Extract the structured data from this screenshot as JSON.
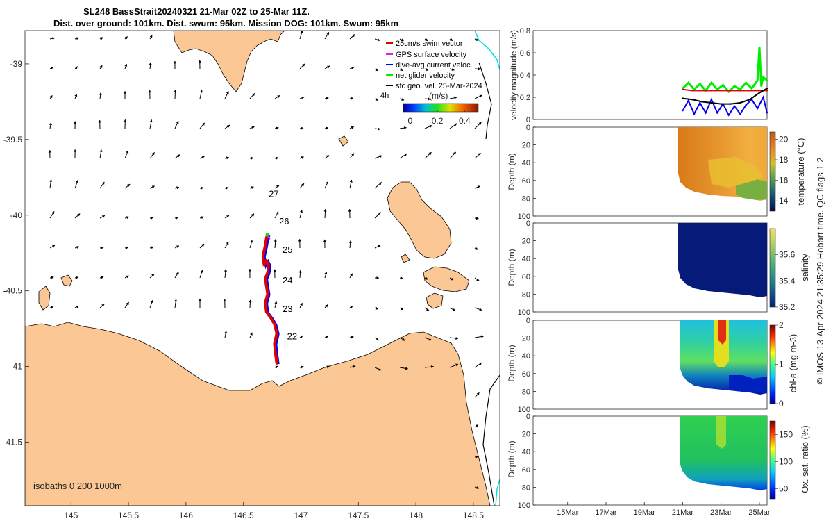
{
  "title": {
    "line1": "SL248 BassStrait20240321 21-Mar 02Z to 25-Mar 11Z.",
    "line2": "Dist. over ground: 101km. Dist. swum: 95km. Mission DOG: 101km. Swum: 95km"
  },
  "colors": {
    "land": "#fbc794",
    "sea": "#ffffff",
    "track_red": "#e00000",
    "track_blue": "#0000ee",
    "net_green": "#00ee00",
    "gps_magenta": "#e020e0",
    "cyan_line": "#00e0e0"
  },
  "chart_data": [
    {
      "type": "map",
      "xlim": [
        144.6,
        148.73
      ],
      "ylim": [
        -41.92,
        -38.78
      ],
      "xticks": [
        "145",
        "145.5",
        "146",
        "146.5",
        "147",
        "147.5",
        "148",
        "148.5"
      ],
      "xtick_values": [
        145,
        145.5,
        146,
        146.5,
        147,
        147.5,
        148,
        148.5
      ],
      "yticks": [
        "-39",
        "-39.5",
        "-40",
        "-40.5",
        "-41",
        "-41.5"
      ],
      "ytick_values": [
        -39,
        -39.5,
        -40,
        -40.5,
        -41,
        -41.5
      ],
      "legend": {
        "placement": "top-right",
        "entries": [
          {
            "label": "25cm/s swim vector",
            "color": "#e00000"
          },
          {
            "label": "GPS surface velocity",
            "color": "#e020e0"
          },
          {
            "label": "dive-avg current veloc.",
            "color": "#0000ee"
          },
          {
            "label": "net glider velocity",
            "color": "#00ee00"
          },
          {
            "label": "sfc geo. vel. 25-Mar-2024",
            "color": "#000000"
          }
        ],
        "arrow_scale_label": "4h"
      },
      "colorbar": {
        "label": "(m/s)",
        "ticks": [
          "0",
          "0.2",
          "0.4"
        ],
        "tick_values": [
          0,
          0.2,
          0.4
        ],
        "range": [
          -0.05,
          0.5
        ]
      },
      "isobaths_label": "isobaths  0   200  1000m",
      "track": {
        "lon": [
          146.79,
          146.78,
          146.77,
          146.79,
          146.77,
          146.74,
          146.7,
          146.69,
          146.71,
          146.7,
          146.69,
          146.71,
          146.72,
          146.7,
          146.68,
          146.67,
          146.69,
          146.7,
          146.71
        ],
        "lat": [
          -40.98,
          -40.92,
          -40.85,
          -40.78,
          -40.72,
          -40.68,
          -40.64,
          -40.58,
          -40.52,
          -40.47,
          -40.42,
          -40.38,
          -40.33,
          -40.3,
          -40.33,
          -40.27,
          -40.2,
          -40.15,
          -40.13
        ]
      },
      "day_labels": [
        {
          "text": "22",
          "lon": 146.88,
          "lat": -40.82
        },
        {
          "text": "23",
          "lon": 146.84,
          "lat": -40.64
        },
        {
          "text": "24",
          "lon": 146.84,
          "lat": -40.45
        },
        {
          "text": "25",
          "lon": 146.84,
          "lat": -40.25
        },
        {
          "text": "26",
          "lon": 146.81,
          "lat": -40.06
        },
        {
          "text": "27",
          "lon": 146.72,
          "lat": -39.88
        }
      ]
    },
    {
      "type": "line",
      "ylabel": "velocity magnitude (m/s)",
      "ylim": [
        0,
        0.8
      ],
      "yticks": [
        "0",
        "0.2",
        "0.4",
        "0.6",
        "0.8"
      ],
      "ytick_values": [
        0,
        0.2,
        0.4,
        0.6,
        0.8
      ],
      "xlim_days": [
        13.2,
        25.4
      ],
      "series": [
        {
          "color": "#00ee00",
          "x": [
            21.0,
            21.3,
            21.6,
            21.9,
            22.2,
            22.5,
            22.8,
            23.1,
            23.4,
            23.7,
            24.0,
            24.3,
            24.6,
            24.9,
            25.0,
            25.1,
            25.2,
            25.4
          ],
          "y": [
            0.28,
            0.33,
            0.27,
            0.32,
            0.26,
            0.33,
            0.27,
            0.31,
            0.25,
            0.3,
            0.27,
            0.33,
            0.28,
            0.35,
            0.65,
            0.3,
            0.38,
            0.35
          ]
        },
        {
          "color": "#e00000",
          "x": [
            21.0,
            21.5,
            22.0,
            22.5,
            23.0,
            23.5,
            24.0,
            24.5,
            25.0,
            25.4
          ],
          "y": [
            0.27,
            0.26,
            0.26,
            0.26,
            0.26,
            0.26,
            0.26,
            0.26,
            0.26,
            0.26
          ]
        },
        {
          "color": "#0000ee",
          "x": [
            21.0,
            21.3,
            21.6,
            21.9,
            22.2,
            22.5,
            22.8,
            23.1,
            23.4,
            23.7,
            24.0,
            24.3,
            24.6,
            24.9,
            25.2,
            25.4
          ],
          "y": [
            0.08,
            0.17,
            0.05,
            0.15,
            0.06,
            0.18,
            0.06,
            0.14,
            0.04,
            0.12,
            0.05,
            0.13,
            0.18,
            0.1,
            0.2,
            0.06
          ]
        },
        {
          "color": "#000000",
          "x": [
            21.0,
            21.5,
            22.0,
            22.5,
            23.0,
            23.5,
            24.0,
            24.5,
            25.0,
            25.4
          ],
          "y": [
            0.19,
            0.18,
            0.16,
            0.15,
            0.14,
            0.14,
            0.15,
            0.18,
            0.24,
            0.28
          ]
        }
      ]
    },
    {
      "type": "heatmap",
      "variable": "temperature",
      "ylabel": "Depth (m)",
      "clabel": "temperature (°C)",
      "ylim": [
        100,
        0
      ],
      "yticks": [
        "0",
        "20",
        "40",
        "60",
        "80",
        "100"
      ],
      "ytick_values": [
        0,
        20,
        40,
        60,
        80,
        100
      ],
      "clim": [
        13,
        20.7
      ],
      "cticks": [
        "14",
        "16",
        "18",
        "20"
      ],
      "ctick_values": [
        14,
        16,
        18,
        20
      ],
      "colormap": "thermal"
    },
    {
      "type": "heatmap",
      "variable": "salinity",
      "ylabel": "Depth (m)",
      "clabel": "salinity",
      "ylim": [
        100,
        0
      ],
      "yticks": [
        "0",
        "20",
        "40",
        "60",
        "80",
        "100"
      ],
      "ytick_values": [
        0,
        20,
        40,
        60,
        80,
        100
      ],
      "clim": [
        35.2,
        35.8
      ],
      "cticks": [
        "35.2",
        "35.4",
        "35.6"
      ],
      "ctick_values": [
        35.2,
        35.4,
        35.6
      ],
      "colormap": "haline"
    },
    {
      "type": "heatmap",
      "variable": "chl-a",
      "ylabel": "Depth (m)",
      "clabel": "chl-a (mg m-3)",
      "ylim": [
        100,
        0
      ],
      "yticks": [
        "0",
        "20",
        "40",
        "60",
        "80",
        "100"
      ],
      "ytick_values": [
        0,
        20,
        40,
        60,
        80,
        100
      ],
      "clim": [
        0,
        2
      ],
      "cticks": [
        "0",
        "1",
        "2"
      ],
      "ctick_values": [
        0,
        1,
        2
      ],
      "colormap": "jet"
    },
    {
      "type": "heatmap",
      "variable": "oxygen",
      "ylabel": "Depth (m)",
      "clabel": "Ox. sat. ratio (%)",
      "ylim": [
        100,
        0
      ],
      "yticks": [
        "0",
        "20",
        "40",
        "60",
        "80",
        "100"
      ],
      "ytick_values": [
        0,
        20,
        40,
        60,
        80,
        100
      ],
      "clim": [
        30,
        175
      ],
      "cticks": [
        "50",
        "100",
        "150"
      ],
      "ctick_values": [
        50,
        100,
        150
      ],
      "colormap": "jet",
      "xticks": [
        "15Mar",
        "17Mar",
        "19Mar",
        "21Mar",
        "23Mar",
        "25Mar"
      ],
      "xtick_values": [
        15,
        17,
        19,
        21,
        23,
        25
      ],
      "xlim_days": [
        13.2,
        25.4
      ]
    }
  ],
  "footer": {
    "copyright": "© IMOS 13-Apr-2024 21:35:29 Hobart time. QC flags 1  2"
  }
}
